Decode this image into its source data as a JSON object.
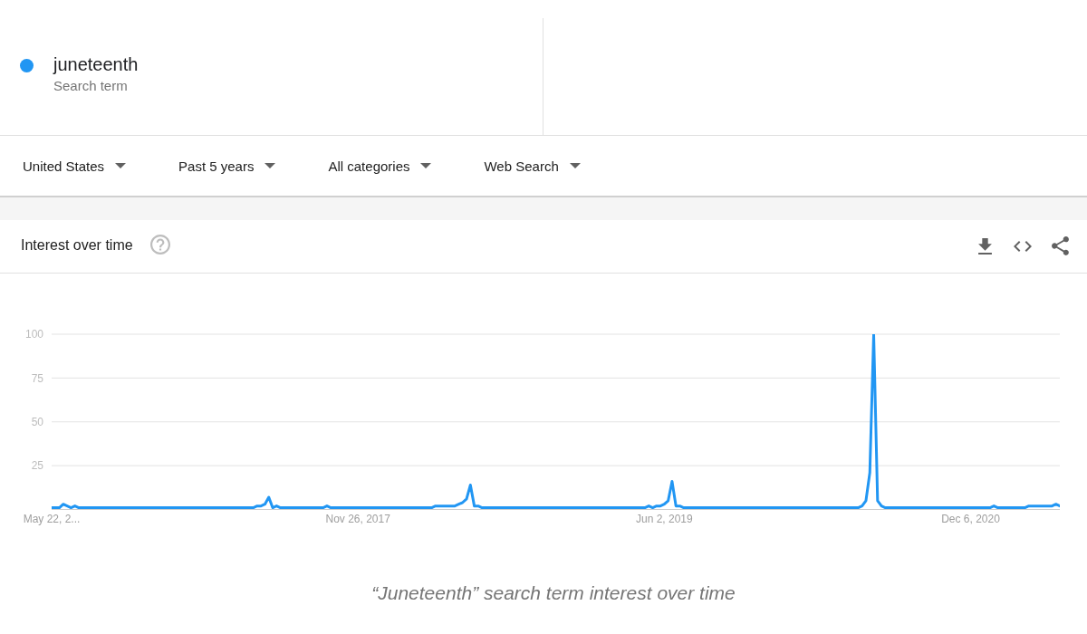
{
  "chart_data": {
    "type": "line",
    "title": "Interest over time",
    "x": [
      "2016-05-22",
      "2016-06-05",
      "2016-06-12",
      "2016-06-19",
      "2016-06-26",
      "2016-07-03",
      "2016-07-10",
      "2017-05-21",
      "2017-05-28",
      "2017-06-04",
      "2017-06-11",
      "2017-06-18",
      "2017-06-25",
      "2017-07-02",
      "2017-07-09",
      "2017-09-24",
      "2017-10-01",
      "2017-10-08",
      "2018-04-08",
      "2018-04-15",
      "2018-05-13",
      "2018-05-20",
      "2018-05-27",
      "2018-06-03",
      "2018-06-10",
      "2018-06-17",
      "2018-06-24",
      "2018-07-01",
      "2018-07-08",
      "2019-04-28",
      "2019-05-05",
      "2019-05-12",
      "2019-05-19",
      "2019-05-26",
      "2019-06-02",
      "2019-06-09",
      "2019-06-16",
      "2019-06-23",
      "2019-06-30",
      "2019-07-07",
      "2020-05-17",
      "2020-05-24",
      "2020-05-31",
      "2020-06-07",
      "2020-06-14",
      "2020-06-21",
      "2020-06-28",
      "2020-07-05",
      "2021-01-10",
      "2021-01-17",
      "2021-01-24",
      "2021-03-14",
      "2021-03-21",
      "2021-05-02",
      "2021-05-09",
      "2021-05-16"
    ],
    "series": [
      {
        "name": "juneteenth",
        "color": "#2196f3",
        "values": [
          1,
          1,
          3,
          2,
          1,
          2,
          1,
          1,
          2,
          2,
          3,
          7,
          1,
          2,
          1,
          1,
          2,
          1,
          1,
          2,
          2,
          2,
          3,
          4,
          6,
          14,
          2,
          2,
          1,
          1,
          2,
          1,
          2,
          2,
          3,
          5,
          16,
          2,
          2,
          1,
          1,
          2,
          5,
          21,
          100,
          5,
          2,
          1,
          1,
          2,
          1,
          1,
          2,
          2,
          3,
          2
        ]
      }
    ],
    "xlim": [
      "2016-05-22",
      "2021-05-16"
    ],
    "xticks": [
      {
        "value": "2016-05-22",
        "label": "May 22, 2..."
      },
      {
        "value": "2017-11-26",
        "label": "Nov 26, 2017"
      },
      {
        "value": "2019-06-02",
        "label": "Jun 2, 2019"
      },
      {
        "value": "2020-12-06",
        "label": "Dec 6, 2020"
      }
    ],
    "ylim": [
      0,
      100
    ],
    "yticks": [
      25,
      50,
      75,
      100
    ],
    "grid": "y",
    "legend": "top left",
    "marker": "none",
    "line_style": "solid",
    "annotations": [
      "Search term",
      "United States",
      "Past 5 years",
      "All categories",
      "Web Search",
      "“Juneteenth” search term interest over time"
    ]
  }
}
